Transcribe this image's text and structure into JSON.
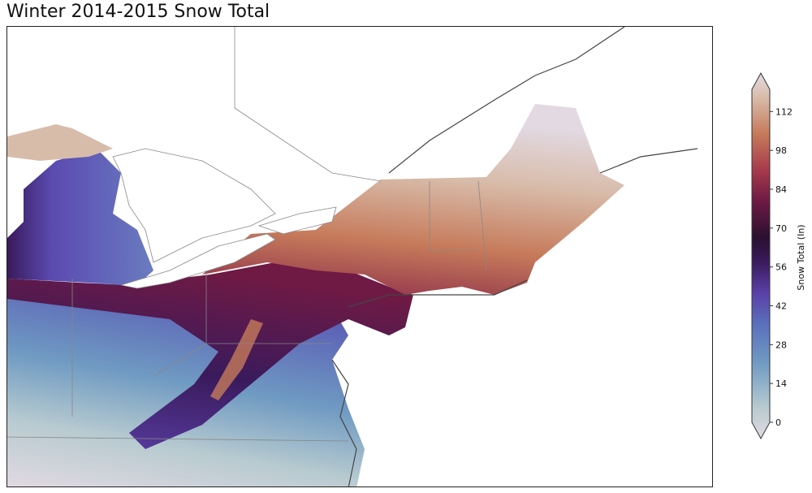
{
  "title": "Winter 2014-2015 Snow Total",
  "colorbar": {
    "label": "Snow Total (In)",
    "ticks": [
      "0",
      "14",
      "28",
      "42",
      "56",
      "70",
      "84",
      "98",
      "112"
    ],
    "min": 0,
    "max": 120,
    "extend": "both",
    "colormap": "twilight_shifted",
    "stops": [
      {
        "value": 0,
        "color": "#e2d9e2"
      },
      {
        "value": 10,
        "color": "#b8cbd0"
      },
      {
        "value": 25,
        "color": "#6f9ac2"
      },
      {
        "value": 38,
        "color": "#5a6ebb"
      },
      {
        "value": 48,
        "color": "#5a3fa6"
      },
      {
        "value": 58,
        "color": "#3a1a5c"
      },
      {
        "value": 66,
        "color": "#2a1030"
      },
      {
        "value": 78,
        "color": "#6e1a44"
      },
      {
        "value": 88,
        "color": "#a63a4c"
      },
      {
        "value": 100,
        "color": "#c67a5a"
      },
      {
        "value": 112,
        "color": "#d8bcaa"
      },
      {
        "value": 120,
        "color": "#e2d9e2"
      }
    ]
  }
}
